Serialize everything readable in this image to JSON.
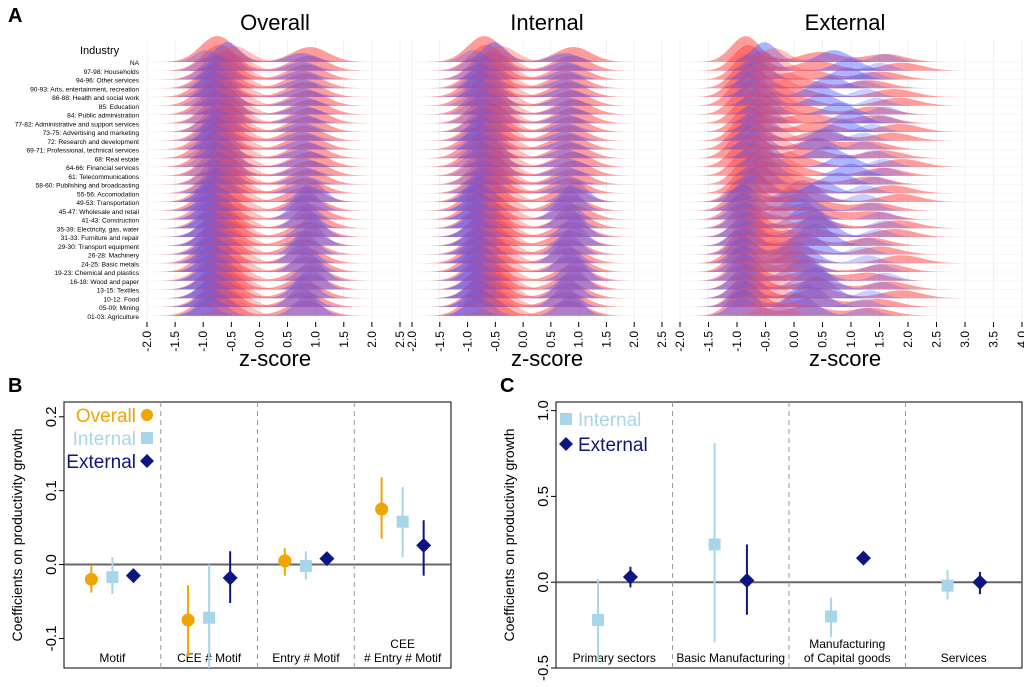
{
  "panel_a": {
    "label": "A",
    "industry_header": "Industry",
    "axis_label": "z-score",
    "industries": [
      "NA",
      "97-98: Households",
      "94-96: Other services",
      "90-93: Arts, entertainment, recreation",
      "86-88: Health and social work",
      "85: Education",
      "84: Public administration",
      "77-82: Administrative and support services",
      "73-75: Advertising and marketing",
      "72: Research and development",
      "69-71: Professional, technical services",
      "68: Real estate",
      "64-66: Financial services",
      "61: Telecommunications",
      "58-60: Publishing and broadcasting",
      "55-56: Accomodation",
      "49-53: Transportation",
      "45-47: Wholesale and retail",
      "41-43: Construction",
      "35-39: Electricity, gas, water",
      "31-33: Furniture and repair",
      "29-30: Transport equipment",
      "26-28: Machinery",
      "24-25: Basic metals",
      "19-23: Chemical and plastics",
      "16-18: Wood and paper",
      "13-15: Textiles",
      "10-12: Food",
      "05-09: Mining",
      "01-03: Agriculture"
    ],
    "colors": {
      "red": "#ff4b4b",
      "blue": "#4b5bff"
    },
    "panels": [
      {
        "title": "Overall",
        "ticks": [
          "-2.0",
          "-1.5",
          "-1.0",
          "-0.5",
          "0.0",
          "0.5",
          "1.0",
          "1.5",
          "2.0",
          "2.5"
        ]
      },
      {
        "title": "Internal",
        "ticks": [
          "-2.0",
          "-1.5",
          "-1.0",
          "-0.5",
          "0.0",
          "0.5",
          "1.0",
          "1.5",
          "2.0",
          "2.5"
        ]
      },
      {
        "title": "External",
        "ticks": [
          "-2.0",
          "-1.5",
          "-1.0",
          "-0.5",
          "0.0",
          "0.5",
          "1.0",
          "1.5",
          "2.0",
          "2.5",
          "3.0",
          "3.5",
          "4.0"
        ]
      }
    ]
  },
  "chart_data": [
    {
      "type": "ridgeline",
      "panel": "A",
      "description_source": "density of z-scores per industry, three panels",
      "panels": [
        "Overall",
        "Internal",
        "External"
      ],
      "xlabel": "z-score",
      "xlim": [
        [
          -2.0,
          2.5
        ],
        [
          -2.0,
          2.5
        ],
        [
          -2.0,
          4.0
        ]
      ],
      "series_colors": [
        "red",
        "blue"
      ]
    },
    {
      "type": "scatter",
      "panel": "B",
      "ylabel": "Coefficients on productivity growth",
      "ylim": [
        -0.14,
        0.22
      ],
      "yticks": [
        "-0.1",
        "0.0",
        "0.1",
        "0.2"
      ],
      "groups": [
        "Motif",
        "CEE # Motif",
        "Entry # Motif",
        "CEE\n# Entry # Motif"
      ],
      "series": [
        {
          "name": "Overall",
          "color": "#f0a500",
          "marker": "circle",
          "values": [
            -0.02,
            -0.075,
            0.005,
            0.075
          ],
          "ci_low": [
            -0.038,
            -0.125,
            -0.015,
            0.035
          ],
          "ci_high": [
            -0.002,
            -0.028,
            0.022,
            0.118
          ]
        },
        {
          "name": "Internal",
          "color": "#a8d5e8",
          "marker": "square",
          "values": [
            -0.017,
            -0.072,
            -0.002,
            0.058
          ],
          "ci_low": [
            -0.04,
            -0.14,
            -0.02,
            0.01
          ],
          "ci_high": [
            0.01,
            0.0,
            0.018,
            0.105
          ]
        },
        {
          "name": "External",
          "color": "#0d1580",
          "marker": "diamond",
          "values": [
            -0.015,
            -0.018,
            0.008,
            0.026
          ],
          "ci_low": [
            -0.022,
            -0.052,
            0.0,
            -0.015
          ],
          "ci_high": [
            -0.008,
            0.018,
            0.015,
            0.06
          ]
        }
      ]
    },
    {
      "type": "scatter",
      "panel": "C",
      "ylabel": "Coefficients on productivity growth",
      "ylim": [
        -0.5,
        1.05
      ],
      "yticks": [
        "-0.5",
        "0.0",
        "0.5",
        "1.0"
      ],
      "groups": [
        "Primary sectors",
        "Basic Manufacturing",
        "Manufacturing\nof Capital goods",
        "Services"
      ],
      "series": [
        {
          "name": "Internal",
          "color": "#a8d5e8",
          "marker": "square",
          "values": [
            -0.22,
            0.22,
            -0.2,
            -0.02
          ],
          "ci_low": [
            -0.46,
            -0.35,
            -0.32,
            -0.1
          ],
          "ci_high": [
            0.02,
            0.81,
            -0.09,
            0.07
          ]
        },
        {
          "name": "External",
          "color": "#0d1580",
          "marker": "diamond",
          "values": [
            0.03,
            0.01,
            0.14,
            0.0
          ],
          "ci_low": [
            -0.03,
            -0.19,
            0.14,
            -0.07
          ],
          "ci_high": [
            0.09,
            0.22,
            0.14,
            0.06
          ]
        }
      ]
    }
  ]
}
